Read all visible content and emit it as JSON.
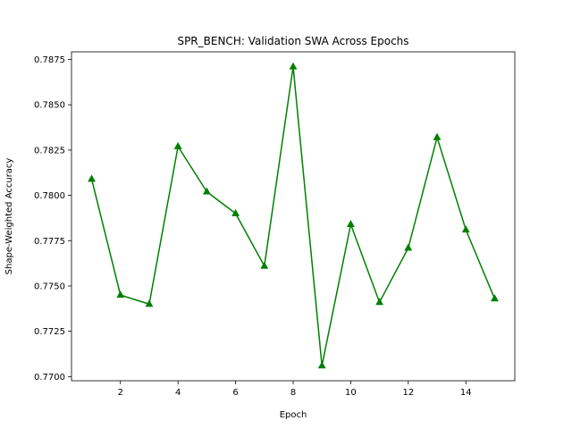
{
  "chart_data": {
    "type": "line",
    "title": "SPR_BENCH: Validation SWA Across Epochs",
    "xlabel": "Epoch",
    "ylabel": "Shape-Weighted Accuracy",
    "x": [
      1,
      2,
      3,
      4,
      5,
      6,
      7,
      8,
      9,
      10,
      11,
      12,
      13,
      14,
      15
    ],
    "series": [
      {
        "values": [
          0.7809,
          0.7745,
          0.774,
          0.7827,
          0.7802,
          0.779,
          0.7761,
          0.7871,
          0.7706,
          0.7784,
          0.7741,
          0.7771,
          0.7832,
          0.7781,
          0.7743
        ],
        "color": "#008000",
        "marker": "triangle-up"
      }
    ],
    "xlim": [
      0.3,
      15.7
    ],
    "ylim": [
      0.76977,
      0.78792
    ],
    "xticks": [
      2,
      4,
      6,
      8,
      10,
      12,
      14
    ],
    "yticks": [
      0.77,
      0.7725,
      0.775,
      0.7775,
      0.78,
      0.7825,
      0.785,
      0.7875
    ],
    "ytick_labels": [
      "0.7700",
      "0.7725",
      "0.7750",
      "0.7775",
      "0.7800",
      "0.7825",
      "0.7850",
      "0.7875"
    ],
    "grid": false,
    "legend": false
  }
}
